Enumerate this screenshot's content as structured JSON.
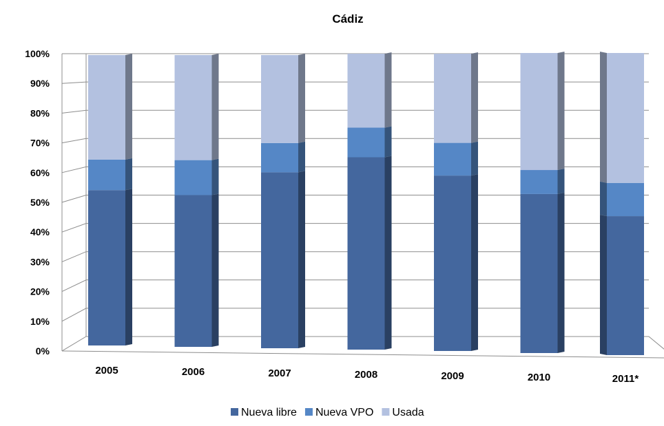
{
  "chart_data": {
    "type": "bar",
    "stacked": "percent",
    "title": "Cádiz",
    "categories": [
      "2005",
      "2006",
      "2007",
      "2008",
      "2009",
      "2010",
      "2011*"
    ],
    "series": [
      {
        "name": "Nueva libre",
        "values": [
          53.5,
          52,
          60,
          65,
          59,
          53,
          46
        ],
        "color": "#44679e"
      },
      {
        "name": "Nueva VPO",
        "values": [
          10.5,
          12,
          10,
          10,
          11,
          8,
          11
        ],
        "color": "#5587c6"
      },
      {
        "name": "Usada",
        "values": [
          36,
          36,
          30,
          25,
          30,
          39,
          43
        ],
        "color": "#b3c1e0"
      }
    ],
    "yticks": [
      "0%",
      "10%",
      "20%",
      "30%",
      "40%",
      "50%",
      "60%",
      "70%",
      "80%",
      "90%",
      "100%"
    ],
    "ylim": [
      0,
      100
    ],
    "grid": true,
    "legend_position": "bottom"
  }
}
